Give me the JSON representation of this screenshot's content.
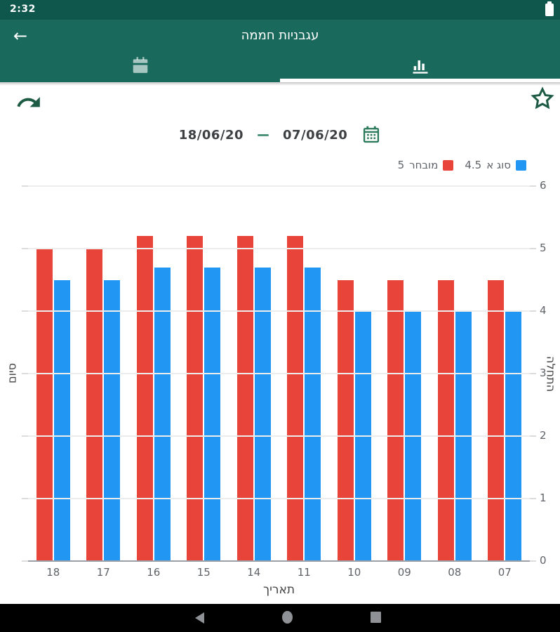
{
  "status_bar": {
    "time": "2:32",
    "battery_icon": "battery-full"
  },
  "app_bar": {
    "title": "עגבניות חממה",
    "back_icon": "arrow-left"
  },
  "tabs": [
    {
      "id": "form",
      "icon": "calendar-icon",
      "active": false
    },
    {
      "id": "chart",
      "icon": "bar-chart-icon",
      "active": true
    }
  ],
  "actions": {
    "share_icon": "share-arrow",
    "favorite_icon": "star-outline"
  },
  "date_range": {
    "date_to": "18/06/20",
    "separator": "—",
    "date_from": "07/06/20",
    "calendar_icon": "calendar-picker"
  },
  "legend": [
    {
      "label": "סוג א",
      "value": "4.5",
      "color": "#2196F3"
    },
    {
      "label": "מובחר",
      "value": "5",
      "color": "#E8443A"
    }
  ],
  "chart_data": {
    "type": "bar",
    "categories": [
      "18",
      "17",
      "16",
      "15",
      "14",
      "11",
      "10",
      "09",
      "08",
      "07"
    ],
    "series": [
      {
        "name": "מובחר",
        "color": "#E8443A",
        "values": [
          5,
          5,
          5.2,
          5.2,
          5.2,
          5.2,
          4.5,
          4.5,
          4.5,
          4.5
        ]
      },
      {
        "name": "סוג א",
        "color": "#2196F3",
        "values": [
          4.5,
          4.5,
          4.7,
          4.7,
          4.7,
          4.7,
          4,
          4,
          4,
          4
        ]
      }
    ],
    "xlabel": "תאריך",
    "ylabel_left": "סיום",
    "ylabel_right": "התחלה",
    "ylim": [
      0,
      6
    ],
    "yticks": [
      0,
      1,
      2,
      3,
      4,
      5,
      6
    ],
    "grid": true,
    "legend_position": "top-right"
  },
  "nav_bar": {
    "buttons": [
      "back",
      "home",
      "recents"
    ]
  },
  "colors": {
    "status_bar": "#0F574D",
    "app_bar": "#19695C",
    "accent_green": "#1D5B45",
    "bar_red": "#E8443A",
    "bar_blue": "#2196F3"
  }
}
